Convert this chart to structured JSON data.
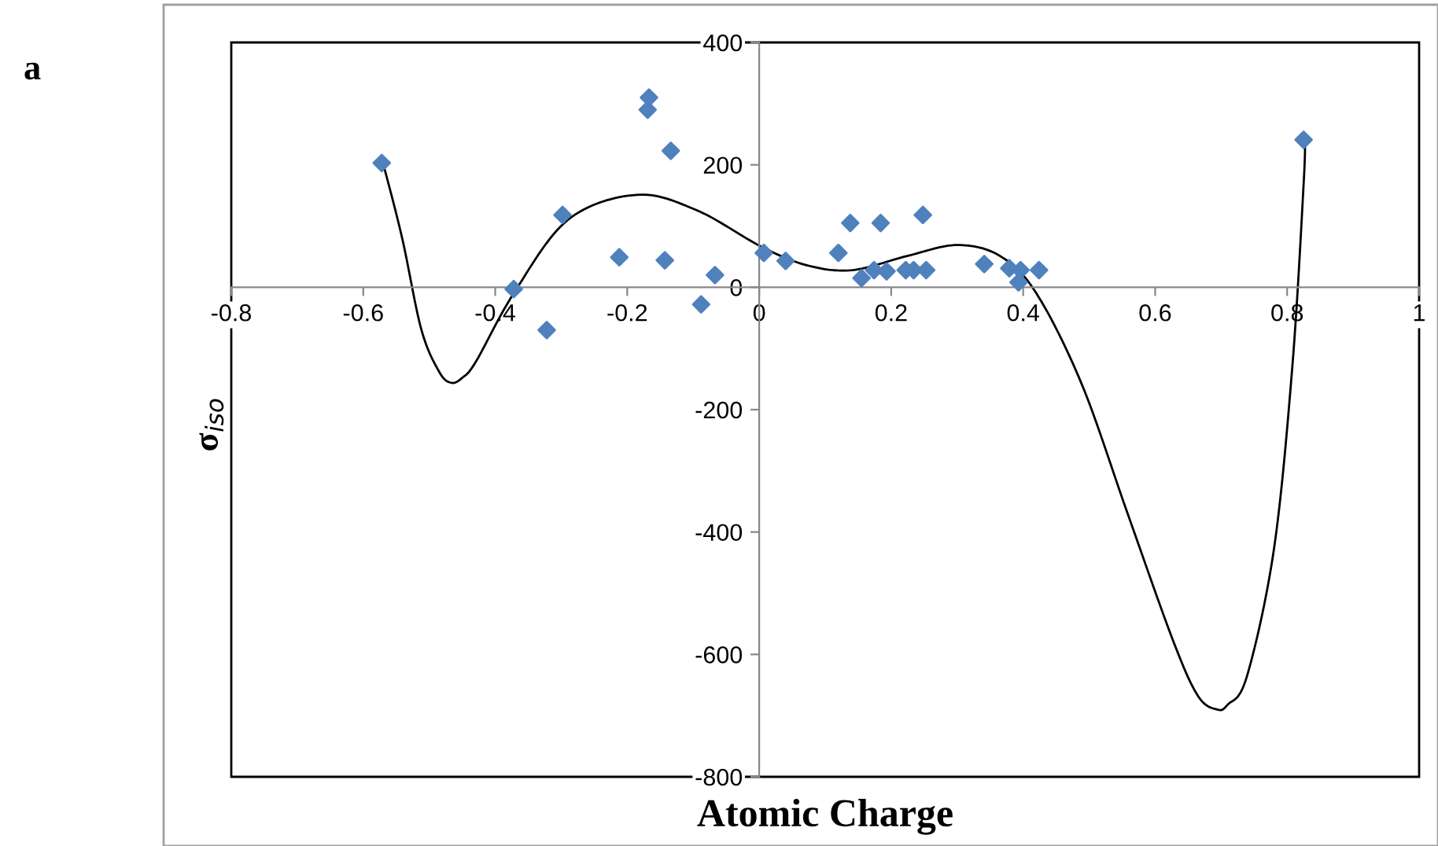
{
  "chart_data": {
    "type": "scatter",
    "xlabel": "Atomic Charge",
    "ylabel": "σ$_{iso}$",
    "annotations": [
      "a"
    ],
    "xlim": [
      -0.8,
      1
    ],
    "xticks": [
      -0.8,
      -0.6,
      -0.4,
      -0.2,
      0,
      0.2,
      0.4,
      0.6,
      0.8,
      1
    ],
    "ylim": [
      -800,
      400
    ],
    "yticks": [
      -800,
      -600,
      -400,
      -200,
      0,
      200,
      400
    ],
    "grid": false,
    "legend": false,
    "series": [
      {
        "color": "#4f81bd",
        "marker": "diamond",
        "x": [
          -0.572,
          -0.372,
          -0.322,
          -0.298,
          -0.212,
          -0.167,
          -0.169,
          -0.134,
          -0.143,
          -0.088,
          -0.067,
          0.007,
          0.04,
          0.12,
          0.138,
          0.155,
          0.174,
          0.184,
          0.193,
          0.222,
          0.234,
          0.248,
          0.253,
          0.341,
          0.379,
          0.396,
          0.393,
          0.424,
          0.825
        ],
        "values": [
          203,
          -3,
          -70,
          118,
          49,
          310,
          290,
          223,
          44,
          -28,
          20,
          56,
          43,
          56,
          105,
          15,
          28,
          105,
          26,
          28,
          28,
          118,
          28,
          38,
          31,
          28,
          8,
          28,
          241
        ]
      },
      {
        "type": "line",
        "color": "#000000",
        "marker": "none",
        "line_style": "solid",
        "x": [
          -0.57,
          -0.541,
          -0.512,
          -0.485,
          -0.467,
          -0.45,
          -0.429,
          -0.372,
          -0.29,
          -0.186,
          -0.095,
          0.002,
          0.072,
          0.141,
          0.224,
          0.3,
          0.365,
          0.42,
          0.489,
          0.558,
          0.627,
          0.665,
          0.694,
          0.71,
          0.739,
          0.78,
          0.808,
          0.825,
          0.827
        ],
        "values": [
          203,
          80,
          -69,
          -138,
          -156,
          -148,
          -121,
          -10,
          110,
          151,
          126,
          67,
          36,
          28,
          51,
          69,
          51,
          -10,
          -159,
          -369,
          -577,
          -668,
          -690,
          -682,
          -636,
          -428,
          -128,
          169,
          241
        ]
      }
    ]
  }
}
